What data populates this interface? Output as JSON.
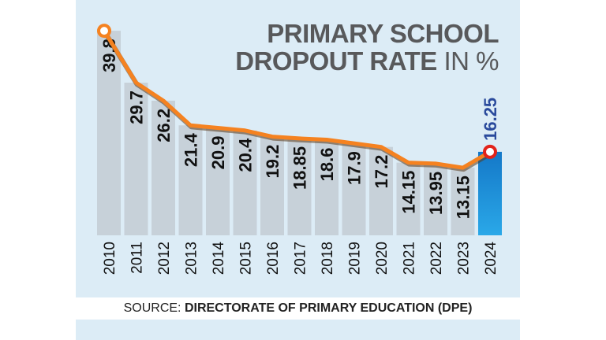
{
  "title": {
    "line1": "PRIMARY SCHOOL",
    "line2_main": "DROPOUT RATE",
    "line2_unit": "IN %"
  },
  "source": {
    "prefix": "SOURCE:",
    "body": "DIRECTORATE OF PRIMARY EDUCATION (DPE)"
  },
  "colors": {
    "bar": "#c7d1d9",
    "highlight_bar": "#1478c8",
    "line": "#f58220",
    "highlight_label": "#2a4a9c",
    "label": "#111111"
  },
  "chart_data": {
    "type": "bar",
    "categories": [
      "2010",
      "2011",
      "2012",
      "2013",
      "2014",
      "2015",
      "2016",
      "2017",
      "2018",
      "2019",
      "2020",
      "2021",
      "2022",
      "2023",
      "2024"
    ],
    "values": [
      39.8,
      29.7,
      26.2,
      21.4,
      20.9,
      20.4,
      19.2,
      18.85,
      18.6,
      17.9,
      17.2,
      14.15,
      13.95,
      13.15,
      16.25
    ],
    "value_labels": [
      "39.8",
      "29.7",
      "26.2",
      "21.4",
      "20.9",
      "20.4",
      "19.2",
      "18.85",
      "18.6",
      "17.9",
      "17.2",
      "14.15",
      "13.95",
      "13.15",
      "16.25"
    ],
    "overlay": "line",
    "highlight_category": "2024",
    "ylim": [
      0,
      40
    ],
    "grid": false,
    "legend": "none"
  }
}
